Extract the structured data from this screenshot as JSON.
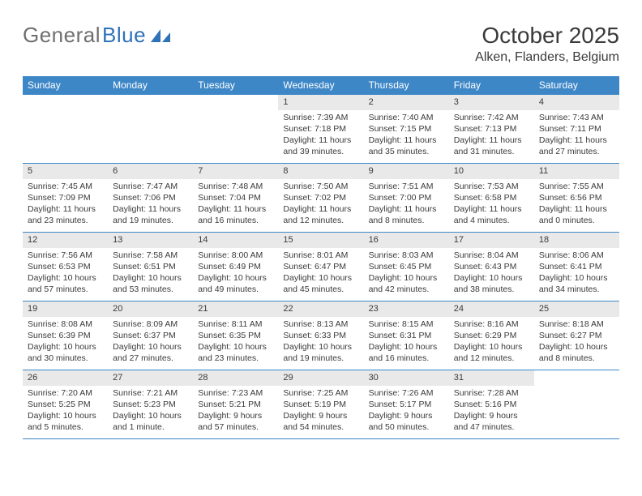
{
  "logo": {
    "text_gray": "General",
    "text_blue": "Blue"
  },
  "title": "October 2025",
  "location": "Alken, Flanders, Belgium",
  "colors": {
    "header_bg": "#3d87c7",
    "header_text": "#ffffff",
    "divider": "#3d87c7",
    "daynum_bg": "#e9e9e9",
    "text": "#3a3a3a",
    "logo_gray": "#6f6f6f",
    "logo_blue": "#2f72b8"
  },
  "weekdays": [
    "Sunday",
    "Monday",
    "Tuesday",
    "Wednesday",
    "Thursday",
    "Friday",
    "Saturday"
  ],
  "weeks": [
    [
      null,
      null,
      null,
      {
        "n": "1",
        "sunrise": "7:39 AM",
        "sunset": "7:18 PM",
        "daylight": "11 hours and 39 minutes."
      },
      {
        "n": "2",
        "sunrise": "7:40 AM",
        "sunset": "7:15 PM",
        "daylight": "11 hours and 35 minutes."
      },
      {
        "n": "3",
        "sunrise": "7:42 AM",
        "sunset": "7:13 PM",
        "daylight": "11 hours and 31 minutes."
      },
      {
        "n": "4",
        "sunrise": "7:43 AM",
        "sunset": "7:11 PM",
        "daylight": "11 hours and 27 minutes."
      }
    ],
    [
      {
        "n": "5",
        "sunrise": "7:45 AM",
        "sunset": "7:09 PM",
        "daylight": "11 hours and 23 minutes."
      },
      {
        "n": "6",
        "sunrise": "7:47 AM",
        "sunset": "7:06 PM",
        "daylight": "11 hours and 19 minutes."
      },
      {
        "n": "7",
        "sunrise": "7:48 AM",
        "sunset": "7:04 PM",
        "daylight": "11 hours and 16 minutes."
      },
      {
        "n": "8",
        "sunrise": "7:50 AM",
        "sunset": "7:02 PM",
        "daylight": "11 hours and 12 minutes."
      },
      {
        "n": "9",
        "sunrise": "7:51 AM",
        "sunset": "7:00 PM",
        "daylight": "11 hours and 8 minutes."
      },
      {
        "n": "10",
        "sunrise": "7:53 AM",
        "sunset": "6:58 PM",
        "daylight": "11 hours and 4 minutes."
      },
      {
        "n": "11",
        "sunrise": "7:55 AM",
        "sunset": "6:56 PM",
        "daylight": "11 hours and 0 minutes."
      }
    ],
    [
      {
        "n": "12",
        "sunrise": "7:56 AM",
        "sunset": "6:53 PM",
        "daylight": "10 hours and 57 minutes."
      },
      {
        "n": "13",
        "sunrise": "7:58 AM",
        "sunset": "6:51 PM",
        "daylight": "10 hours and 53 minutes."
      },
      {
        "n": "14",
        "sunrise": "8:00 AM",
        "sunset": "6:49 PM",
        "daylight": "10 hours and 49 minutes."
      },
      {
        "n": "15",
        "sunrise": "8:01 AM",
        "sunset": "6:47 PM",
        "daylight": "10 hours and 45 minutes."
      },
      {
        "n": "16",
        "sunrise": "8:03 AM",
        "sunset": "6:45 PM",
        "daylight": "10 hours and 42 minutes."
      },
      {
        "n": "17",
        "sunrise": "8:04 AM",
        "sunset": "6:43 PM",
        "daylight": "10 hours and 38 minutes."
      },
      {
        "n": "18",
        "sunrise": "8:06 AM",
        "sunset": "6:41 PM",
        "daylight": "10 hours and 34 minutes."
      }
    ],
    [
      {
        "n": "19",
        "sunrise": "8:08 AM",
        "sunset": "6:39 PM",
        "daylight": "10 hours and 30 minutes."
      },
      {
        "n": "20",
        "sunrise": "8:09 AM",
        "sunset": "6:37 PM",
        "daylight": "10 hours and 27 minutes."
      },
      {
        "n": "21",
        "sunrise": "8:11 AM",
        "sunset": "6:35 PM",
        "daylight": "10 hours and 23 minutes."
      },
      {
        "n": "22",
        "sunrise": "8:13 AM",
        "sunset": "6:33 PM",
        "daylight": "10 hours and 19 minutes."
      },
      {
        "n": "23",
        "sunrise": "8:15 AM",
        "sunset": "6:31 PM",
        "daylight": "10 hours and 16 minutes."
      },
      {
        "n": "24",
        "sunrise": "8:16 AM",
        "sunset": "6:29 PM",
        "daylight": "10 hours and 12 minutes."
      },
      {
        "n": "25",
        "sunrise": "8:18 AM",
        "sunset": "6:27 PM",
        "daylight": "10 hours and 8 minutes."
      }
    ],
    [
      {
        "n": "26",
        "sunrise": "7:20 AM",
        "sunset": "5:25 PM",
        "daylight": "10 hours and 5 minutes."
      },
      {
        "n": "27",
        "sunrise": "7:21 AM",
        "sunset": "5:23 PM",
        "daylight": "10 hours and 1 minute."
      },
      {
        "n": "28",
        "sunrise": "7:23 AM",
        "sunset": "5:21 PM",
        "daylight": "9 hours and 57 minutes."
      },
      {
        "n": "29",
        "sunrise": "7:25 AM",
        "sunset": "5:19 PM",
        "daylight": "9 hours and 54 minutes."
      },
      {
        "n": "30",
        "sunrise": "7:26 AM",
        "sunset": "5:17 PM",
        "daylight": "9 hours and 50 minutes."
      },
      {
        "n": "31",
        "sunrise": "7:28 AM",
        "sunset": "5:16 PM",
        "daylight": "9 hours and 47 minutes."
      },
      null
    ]
  ],
  "labels": {
    "sunrise": "Sunrise:",
    "sunset": "Sunset:",
    "daylight": "Daylight:"
  }
}
